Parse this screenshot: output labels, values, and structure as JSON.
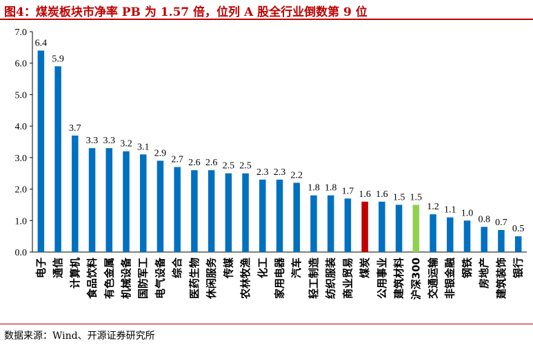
{
  "title": "图4：煤炭板块市净率 PB 为 1.57 倍，位列 A 股全行业倒数第 9 位",
  "source": "数据来源：Wind、开源证券研究所",
  "colors": {
    "default_bar": "#0070c0",
    "highlight_coal": "#c00000",
    "highlight_index": "#92d050",
    "title": "#c00000"
  },
  "chart_data": {
    "type": "bar",
    "title": "",
    "xlabel": "",
    "ylabel": "",
    "ylim": [
      0,
      7
    ],
    "yticks": [
      "0.0",
      "1.0",
      "2.0",
      "3.0",
      "4.0",
      "5.0",
      "6.0",
      "7.0"
    ],
    "grid": false,
    "categories": [
      "电子",
      "通信",
      "计算机",
      "食品饮料",
      "有色金属",
      "机械设备",
      "国防军工",
      "电气设备",
      "综合",
      "医药生物",
      "休闲服务",
      "传媒",
      "农林牧渔",
      "化工",
      "家用电器",
      "汽车",
      "轻工制造",
      "纺织服装",
      "商业贸易",
      "煤炭",
      "公用事业",
      "建筑材料",
      "沪深300",
      "交通运输",
      "非银金融",
      "钢铁",
      "房地产",
      "建筑装饰",
      "银行"
    ],
    "values": [
      6.4,
      5.9,
      3.7,
      3.3,
      3.3,
      3.2,
      3.1,
      2.9,
      2.7,
      2.6,
      2.6,
      2.5,
      2.5,
      2.3,
      2.3,
      2.2,
      1.8,
      1.8,
      1.7,
      1.6,
      1.6,
      1.5,
      1.5,
      1.2,
      1.1,
      1.0,
      0.8,
      0.7,
      0.5
    ],
    "data_labels": [
      "6.4",
      "5.9",
      "3.7",
      "3.3",
      "3.3",
      "3.2",
      "3.1",
      "2.9",
      "2.7",
      "2.6",
      "2.6",
      "2.5",
      "2.5",
      "2.3",
      "2.3",
      "2.2",
      "1.8",
      "1.8",
      "1.7",
      "1.6",
      "1.6",
      "1.5",
      "1.5",
      "1.2",
      "1.1",
      "1.0",
      "0.8",
      "0.7",
      "0.5"
    ],
    "highlights": {
      "煤炭": "highlight_coal",
      "沪深300": "highlight_index"
    }
  }
}
